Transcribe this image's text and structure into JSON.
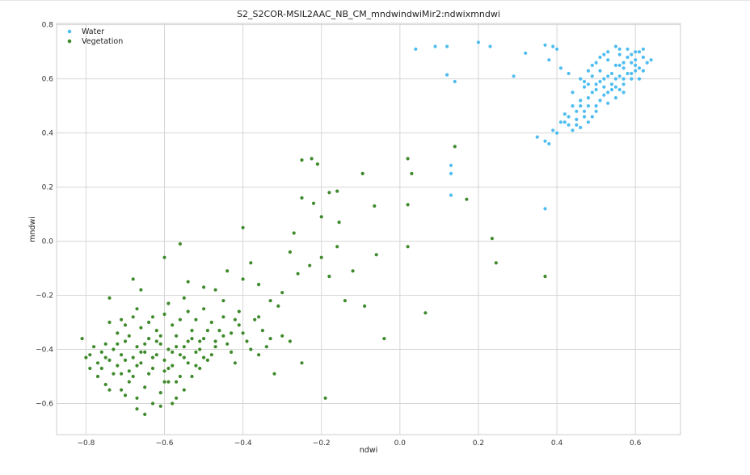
{
  "chart_data": {
    "type": "scatter",
    "title": "S2_S2COR-MSIL2AAC_NB_CM_mndwindwiMir2:ndwixmndwi",
    "xlabel": "ndwi",
    "ylabel": "mndwi",
    "xlim": [
      -0.875,
      0.715
    ],
    "ylim": [
      -0.715,
      0.805
    ],
    "xticks": [
      -0.8,
      -0.6,
      -0.4,
      -0.2,
      0.0,
      0.2,
      0.4,
      0.6
    ],
    "xtick_labels": [
      "−0.8",
      "−0.6",
      "−0.4",
      "−0.2",
      "0.0",
      "0.2",
      "0.4",
      "0.6"
    ],
    "yticks": [
      -0.6,
      -0.4,
      -0.2,
      0.0,
      0.2,
      0.4,
      0.6,
      0.8
    ],
    "ytick_labels": [
      "−0.6",
      "−0.4",
      "−0.2",
      "0.0",
      "0.2",
      "0.4",
      "0.6",
      "0.8"
    ],
    "grid": true,
    "legend_position": "top-left",
    "series": [
      {
        "name": "Water",
        "color": "#4fbdf0",
        "points": [
          [
            0.04,
            0.71
          ],
          [
            0.09,
            0.72
          ],
          [
            0.12,
            0.72
          ],
          [
            0.2,
            0.735
          ],
          [
            0.23,
            0.72
          ],
          [
            0.32,
            0.695
          ],
          [
            0.12,
            0.615
          ],
          [
            0.14,
            0.59
          ],
          [
            0.29,
            0.61
          ],
          [
            0.35,
            0.385
          ],
          [
            0.13,
            0.28
          ],
          [
            0.13,
            0.25
          ],
          [
            0.13,
            0.17
          ],
          [
            0.37,
            0.12
          ],
          [
            0.37,
            0.725
          ],
          [
            0.39,
            0.72
          ],
          [
            0.4,
            0.71
          ],
          [
            0.38,
            0.67
          ],
          [
            0.41,
            0.64
          ],
          [
            0.43,
            0.62
          ],
          [
            0.37,
            0.37
          ],
          [
            0.38,
            0.36
          ],
          [
            0.39,
            0.41
          ],
          [
            0.4,
            0.4
          ],
          [
            0.41,
            0.44
          ],
          [
            0.42,
            0.47
          ],
          [
            0.44,
            0.5
          ],
          [
            0.46,
            0.52
          ],
          [
            0.43,
            0.43
          ],
          [
            0.45,
            0.45
          ],
          [
            0.47,
            0.46
          ],
          [
            0.48,
            0.5
          ],
          [
            0.49,
            0.55
          ],
          [
            0.5,
            0.58
          ],
          [
            0.52,
            0.6
          ],
          [
            0.54,
            0.62
          ],
          [
            0.56,
            0.65
          ],
          [
            0.58,
            0.68
          ],
          [
            0.6,
            0.7
          ],
          [
            0.62,
            0.68
          ],
          [
            0.63,
            0.66
          ],
          [
            0.6,
            0.63
          ],
          [
            0.57,
            0.6
          ],
          [
            0.55,
            0.57
          ],
          [
            0.53,
            0.55
          ],
          [
            0.51,
            0.52
          ],
          [
            0.5,
            0.48
          ],
          [
            0.48,
            0.44
          ],
          [
            0.46,
            0.42
          ],
          [
            0.53,
            0.51
          ],
          [
            0.55,
            0.53
          ],
          [
            0.57,
            0.55
          ],
          [
            0.59,
            0.6
          ],
          [
            0.61,
            0.64
          ],
          [
            0.59,
            0.66
          ],
          [
            0.56,
            0.69
          ],
          [
            0.58,
            0.71
          ],
          [
            0.55,
            0.72
          ],
          [
            0.52,
            0.69
          ],
          [
            0.5,
            0.66
          ],
          [
            0.48,
            0.63
          ],
          [
            0.46,
            0.6
          ],
          [
            0.47,
            0.57
          ],
          [
            0.49,
            0.61
          ],
          [
            0.51,
            0.63
          ],
          [
            0.53,
            0.67
          ],
          [
            0.57,
            0.64
          ],
          [
            0.6,
            0.67
          ],
          [
            0.62,
            0.71
          ],
          [
            0.54,
            0.58
          ],
          [
            0.56,
            0.56
          ],
          [
            0.52,
            0.57
          ],
          [
            0.5,
            0.56
          ],
          [
            0.48,
            0.53
          ],
          [
            0.45,
            0.48
          ],
          [
            0.44,
            0.41
          ],
          [
            0.42,
            0.44
          ],
          [
            0.47,
            0.59
          ],
          [
            0.56,
            0.61
          ],
          [
            0.59,
            0.62
          ],
          [
            0.61,
            0.6
          ],
          [
            0.64,
            0.67
          ],
          [
            0.43,
            0.46
          ],
          [
            0.45,
            0.43
          ],
          [
            0.51,
            0.59
          ],
          [
            0.53,
            0.61
          ],
          [
            0.55,
            0.65
          ],
          [
            0.58,
            0.62
          ],
          [
            0.52,
            0.54
          ],
          [
            0.5,
            0.5
          ],
          [
            0.47,
            0.48
          ],
          [
            0.49,
            0.46
          ],
          [
            0.54,
            0.56
          ],
          [
            0.57,
            0.58
          ],
          [
            0.6,
            0.65
          ],
          [
            0.62,
            0.63
          ],
          [
            0.44,
            0.55
          ],
          [
            0.46,
            0.5
          ],
          [
            0.48,
            0.58
          ],
          [
            0.55,
            0.6
          ],
          [
            0.57,
            0.66
          ],
          [
            0.59,
            0.69
          ],
          [
            0.61,
            0.7
          ],
          [
            0.56,
            0.71
          ],
          [
            0.53,
            0.7
          ],
          [
            0.51,
            0.68
          ],
          [
            0.49,
            0.65
          ]
        ]
      },
      {
        "name": "Vegetation",
        "color": "#3f8a2c",
        "points": [
          [
            -0.81,
            -0.36
          ],
          [
            -0.79,
            -0.42
          ],
          [
            -0.78,
            -0.39
          ],
          [
            -0.77,
            -0.45
          ],
          [
            -0.76,
            -0.41
          ],
          [
            -0.75,
            -0.38
          ],
          [
            -0.74,
            -0.44
          ],
          [
            -0.73,
            -0.4
          ],
          [
            -0.72,
            -0.46
          ],
          [
            -0.71,
            -0.42
          ],
          [
            -0.7,
            -0.37
          ],
          [
            -0.69,
            -0.48
          ],
          [
            -0.68,
            -0.43
          ],
          [
            -0.67,
            -0.39
          ],
          [
            -0.66,
            -0.45
          ],
          [
            -0.65,
            -0.41
          ],
          [
            -0.64,
            -0.36
          ],
          [
            -0.63,
            -0.47
          ],
          [
            -0.62,
            -0.42
          ],
          [
            -0.61,
            -0.38
          ],
          [
            -0.6,
            -0.44
          ],
          [
            -0.59,
            -0.4
          ],
          [
            -0.58,
            -0.46
          ],
          [
            -0.57,
            -0.35
          ],
          [
            -0.56,
            -0.42
          ],
          [
            -0.55,
            -0.39
          ],
          [
            -0.54,
            -0.45
          ],
          [
            -0.53,
            -0.33
          ],
          [
            -0.52,
            -0.41
          ],
          [
            -0.51,
            -0.37
          ],
          [
            -0.5,
            -0.43
          ],
          [
            -0.48,
            -0.3
          ],
          [
            -0.47,
            -0.39
          ],
          [
            -0.45,
            -0.35
          ],
          [
            -0.43,
            -0.41
          ],
          [
            -0.41,
            -0.31
          ],
          [
            -0.39,
            -0.37
          ],
          [
            -0.37,
            -0.29
          ],
          [
            -0.35,
            -0.33
          ],
          [
            -0.33,
            -0.36
          ],
          [
            -0.77,
            -0.5
          ],
          [
            -0.75,
            -0.53
          ],
          [
            -0.73,
            -0.49
          ],
          [
            -0.71,
            -0.55
          ],
          [
            -0.69,
            -0.52
          ],
          [
            -0.67,
            -0.58
          ],
          [
            -0.65,
            -0.54
          ],
          [
            -0.63,
            -0.6
          ],
          [
            -0.61,
            -0.56
          ],
          [
            -0.59,
            -0.52
          ],
          [
            -0.57,
            -0.58
          ],
          [
            -0.55,
            -0.55
          ],
          [
            -0.53,
            -0.5
          ],
          [
            -0.51,
            -0.47
          ],
          [
            -0.49,
            -0.44
          ],
          [
            -0.74,
            -0.3
          ],
          [
            -0.72,
            -0.34
          ],
          [
            -0.7,
            -0.31
          ],
          [
            -0.68,
            -0.28
          ],
          [
            -0.66,
            -0.32
          ],
          [
            -0.64,
            -0.3
          ],
          [
            -0.62,
            -0.33
          ],
          [
            -0.6,
            -0.27
          ],
          [
            -0.58,
            -0.31
          ],
          [
            -0.56,
            -0.29
          ],
          [
            -0.54,
            -0.26
          ],
          [
            -0.52,
            -0.29
          ],
          [
            -0.5,
            -0.25
          ],
          [
            -0.74,
            -0.21
          ],
          [
            -0.68,
            -0.14
          ],
          [
            -0.66,
            -0.18
          ],
          [
            -0.6,
            -0.06
          ],
          [
            -0.56,
            -0.01
          ],
          [
            -0.54,
            -0.15
          ],
          [
            -0.47,
            -0.18
          ],
          [
            -0.44,
            -0.11
          ],
          [
            -0.4,
            -0.14
          ],
          [
            -0.38,
            -0.08
          ],
          [
            -0.36,
            -0.16
          ],
          [
            -0.33,
            -0.22
          ],
          [
            -0.3,
            -0.19
          ],
          [
            -0.28,
            -0.04
          ],
          [
            -0.26,
            -0.12
          ],
          [
            -0.25,
            -0.45
          ],
          [
            -0.23,
            -0.09
          ],
          [
            -0.2,
            -0.06
          ],
          [
            -0.18,
            -0.13
          ],
          [
            -0.16,
            -0.02
          ],
          [
            -0.14,
            -0.22
          ],
          [
            -0.12,
            -0.11
          ],
          [
            -0.09,
            -0.24
          ],
          [
            -0.06,
            -0.05
          ],
          [
            -0.04,
            -0.36
          ],
          [
            -0.19,
            -0.58
          ],
          [
            -0.4,
            0.05
          ],
          [
            -0.27,
            0.03
          ],
          [
            -0.25,
            0.16
          ],
          [
            -0.22,
            0.14
          ],
          [
            -0.2,
            0.09
          ],
          [
            -0.18,
            0.18
          ],
          [
            -0.16,
            0.185
          ],
          [
            -0.155,
            0.07
          ],
          [
            -0.095,
            0.25
          ],
          [
            -0.065,
            0.13
          ],
          [
            -0.25,
            0.3
          ],
          [
            -0.225,
            0.305
          ],
          [
            -0.21,
            0.285
          ],
          [
            0.02,
            0.305
          ],
          [
            0.03,
            0.25
          ],
          [
            0.02,
            0.135
          ],
          [
            0.02,
            -0.02
          ],
          [
            0.065,
            -0.265
          ],
          [
            0.14,
            0.35
          ],
          [
            0.17,
            0.155
          ],
          [
            0.235,
            0.01
          ],
          [
            0.245,
            -0.08
          ],
          [
            0.37,
            -0.13
          ],
          [
            -0.8,
            -0.43
          ],
          [
            -0.76,
            -0.47
          ],
          [
            -0.72,
            -0.38
          ],
          [
            -0.7,
            -0.44
          ],
          [
            -0.68,
            -0.5
          ],
          [
            -0.66,
            -0.41
          ],
          [
            -0.64,
            -0.49
          ],
          [
            -0.62,
            -0.37
          ],
          [
            -0.6,
            -0.48
          ],
          [
            -0.58,
            -0.41
          ],
          [
            -0.56,
            -0.5
          ],
          [
            -0.54,
            -0.37
          ],
          [
            -0.52,
            -0.46
          ],
          [
            -0.5,
            -0.36
          ],
          [
            -0.48,
            -0.42
          ],
          [
            -0.46,
            -0.33
          ],
          [
            -0.44,
            -0.38
          ],
          [
            -0.42,
            -0.45
          ],
          [
            -0.4,
            -0.34
          ],
          [
            -0.38,
            -0.4
          ],
          [
            -0.36,
            -0.42
          ],
          [
            -0.34,
            -0.39
          ],
          [
            -0.32,
            -0.49
          ],
          [
            -0.3,
            -0.35
          ],
          [
            -0.28,
            -0.37
          ],
          [
            -0.79,
            -0.47
          ],
          [
            -0.75,
            -0.43
          ],
          [
            -0.71,
            -0.49
          ],
          [
            -0.67,
            -0.46
          ],
          [
            -0.63,
            -0.43
          ],
          [
            -0.59,
            -0.47
          ],
          [
            -0.55,
            -0.43
          ],
          [
            -0.51,
            -0.4
          ],
          [
            -0.47,
            -0.37
          ],
          [
            -0.43,
            -0.34
          ],
          [
            -0.67,
            -0.62
          ],
          [
            -0.61,
            -0.61
          ],
          [
            -0.57,
            -0.52
          ],
          [
            -0.65,
            -0.64
          ],
          [
            -0.58,
            -0.6
          ],
          [
            -0.7,
            -0.57
          ],
          [
            -0.74,
            -0.55
          ],
          [
            -0.6,
            -0.52
          ],
          [
            -0.69,
            -0.35
          ],
          [
            -0.65,
            -0.38
          ],
          [
            -0.61,
            -0.35
          ],
          [
            -0.57,
            -0.39
          ],
          [
            -0.53,
            -0.36
          ],
          [
            -0.49,
            -0.33
          ],
          [
            -0.45,
            -0.28
          ],
          [
            -0.41,
            -0.26
          ],
          [
            -0.36,
            -0.28
          ],
          [
            -0.31,
            -0.24
          ],
          [
            -0.71,
            -0.29
          ],
          [
            -0.67,
            -0.25
          ],
          [
            -0.63,
            -0.28
          ],
          [
            -0.59,
            -0.23
          ],
          [
            -0.55,
            -0.21
          ],
          [
            -0.5,
            -0.17
          ],
          [
            -0.45,
            -0.22
          ],
          [
            -0.42,
            -0.29
          ]
        ]
      }
    ]
  }
}
